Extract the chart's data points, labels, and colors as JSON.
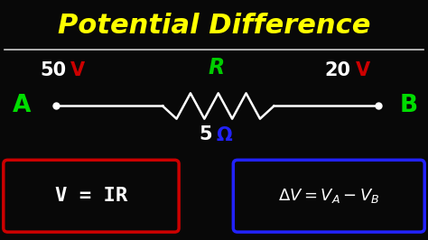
{
  "title": "Potential Difference",
  "title_color": "#FFFF00",
  "bg_color": "#080808",
  "separator_color": "#CCCCCC",
  "label_A": "A",
  "label_B": "B",
  "label_A_color": "#00DD00",
  "label_B_color": "#00DD00",
  "voltage_left": "50",
  "voltage_left_color": "#FFFFFF",
  "voltage_left_v_color": "#CC0000",
  "voltage_right": "20",
  "voltage_right_color": "#FFFFFF",
  "voltage_right_v_color": "#CC0000",
  "R_label": "R",
  "R_color": "#00CC00",
  "ohm_label": "5",
  "ohm_color": "#FFFFFF",
  "ohm_symbol_color": "#2222FF",
  "wire_color": "#FFFFFF",
  "formula1_box_color": "#CC0000",
  "formula1_text_color": "#FFFFFF",
  "formula2_box_color": "#2222FF",
  "formula2_text_color": "#FFFFFF",
  "dot_color": "#FFFFFF",
  "figsize": [
    4.74,
    2.66
  ],
  "dpi": 100
}
